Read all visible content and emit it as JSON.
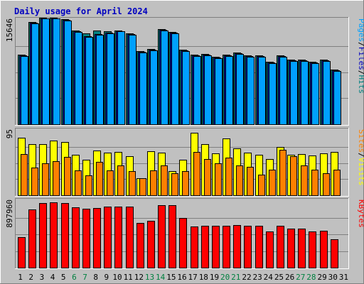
{
  "chart_data": {
    "type": "bar",
    "title": "Daily usage for April 2024",
    "days": [
      "1",
      "2",
      "3",
      "4",
      "5",
      "6",
      "7",
      "8",
      "9",
      "10",
      "11",
      "12",
      "13",
      "14",
      "15",
      "16",
      "17",
      "18",
      "19",
      "20",
      "21",
      "22",
      "23",
      "24",
      "25",
      "26",
      "27",
      "28",
      "29",
      "30",
      "31"
    ],
    "weekend_days": [
      "6",
      "7",
      "13",
      "14",
      "20",
      "21",
      "27",
      "28"
    ],
    "panels": [
      {
        "id": "top",
        "max_label": "15646",
        "ymax": 15646,
        "legend": [
          {
            "text": "Pages",
            "color": "#00a0ff"
          },
          {
            "text": "/",
            "color": "#000000"
          },
          {
            "text": "Files",
            "color": "#0000c0"
          },
          {
            "text": "/",
            "color": "#000000"
          },
          {
            "text": "Hits",
            "color": "#008080"
          }
        ],
        "series": [
          {
            "name": "Hits",
            "color": "#008080",
            "values": [
              10400,
              15300,
              16000,
              16000,
              15700,
              14000,
              13600,
              14000,
              13900,
              14000,
              13600,
              11000,
              11300,
              14300,
              13800,
              11200,
              10400,
              10500,
              10100,
              10400,
              10700,
              10300,
              10300,
              9400,
              10300,
              9700,
              9700,
              9400,
              9700,
              8200,
              0
            ]
          },
          {
            "name": "Files",
            "color": "#0000c0",
            "values": [
              10300,
              15200,
              15900,
              15900,
              15600,
              13900,
              13200,
              13500,
              13700,
              13900,
              13500,
              10900,
              11200,
              14200,
              13700,
              11100,
              10300,
              10400,
              10000,
              10300,
              10600,
              10200,
              10200,
              9300,
              10200,
              9600,
              9600,
              9300,
              9600,
              8100,
              0
            ]
          },
          {
            "name": "Pages",
            "color": "#00a0ff",
            "values": [
              10200,
              15100,
              15900,
              15900,
              15500,
              13800,
              13100,
              13400,
              13600,
              13900,
              13400,
              10800,
              11100,
              14100,
              13600,
              11000,
              10200,
              10300,
              9900,
              10200,
              10500,
              10100,
              10100,
              9200,
              10100,
              9500,
              9500,
              9200,
              9500,
              8000,
              0
            ]
          }
        ]
      },
      {
        "id": "mid",
        "max_label": "95",
        "ymax": 95,
        "legend": [
          {
            "text": "Sites",
            "color": "#ff8000"
          },
          {
            "text": "/",
            "color": "#000000"
          },
          {
            "text": "Visits",
            "color": "#ffff00"
          }
        ],
        "series": [
          {
            "name": "Visits",
            "color": "#ffff00",
            "values": [
              85,
              75,
              75,
              80,
              78,
              60,
              52,
              66,
              63,
              64,
              57,
              25,
              65,
              63,
              36,
              52,
              92,
              75,
              62,
              84,
              69,
              63,
              60,
              53,
              71,
              60,
              61,
              58,
              62,
              64,
              0
            ]
          },
          {
            "name": "Sites",
            "color": "#ff8000",
            "values": [
              61,
              41,
              47,
              50,
              56,
              37,
              29,
              49,
              37,
              44,
              36,
              25,
              37,
              44,
              32,
              35,
              64,
              53,
              47,
              55,
              44,
              42,
              30,
              38,
              67,
              57,
              44,
              38,
              32,
              38,
              0
            ]
          }
        ]
      },
      {
        "id": "bot",
        "max_label": "897960",
        "ymax": 897960,
        "legend": [
          {
            "text": "KBytes",
            "color": "#ff0000"
          }
        ],
        "series": [
          {
            "name": "KBytes",
            "color": "#ff0000",
            "values": [
              410000,
              780000,
              870000,
              880000,
              870000,
              810000,
              790000,
              800000,
              820000,
              820000,
              820000,
              600000,
              630000,
              840000,
              840000,
              670000,
              550000,
              560000,
              560000,
              560000,
              570000,
              560000,
              560000,
              490000,
              560000,
              530000,
              530000,
              490000,
              500000,
              380000,
              0
            ]
          }
        ]
      }
    ]
  }
}
